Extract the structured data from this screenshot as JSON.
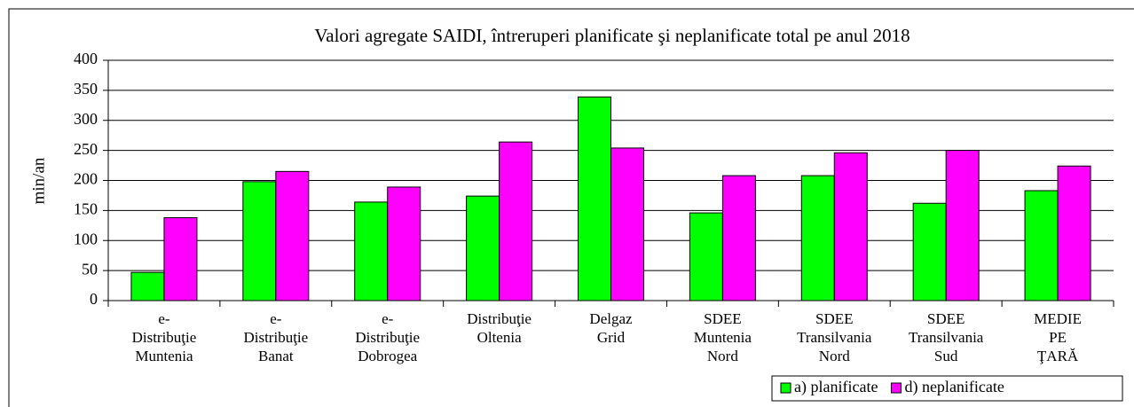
{
  "chart_data": {
    "type": "bar",
    "title": "Valori agregate SAIDI,  întreruperi planificate şi neplanificate total pe anul 2018",
    "y_label": "min/an",
    "categories": [
      [
        "e-",
        "Distribuţie",
        "Muntenia"
      ],
      [
        "e-",
        "Distribuţie",
        "Banat"
      ],
      [
        "e-",
        "Distribuţie",
        "Dobrogea"
      ],
      [
        "Distribuţie",
        "Oltenia"
      ],
      [
        "Delgaz",
        "Grid"
      ],
      [
        "SDEE",
        "Muntenia",
        "Nord"
      ],
      [
        "SDEE",
        "Transilvania",
        "Nord"
      ],
      [
        "SDEE",
        "Transilvania",
        "Sud"
      ],
      [
        "MEDIE",
        "PE",
        "ŢARĂ"
      ]
    ],
    "series": [
      {
        "name": "a) planificate",
        "color": "#00ff00",
        "values": [
          47,
          198,
          164,
          174,
          339,
          146,
          208,
          162,
          183
        ]
      },
      {
        "name": "d) neplanificate",
        "color": "#ff00ff",
        "values": [
          138,
          215,
          189,
          264,
          254,
          208,
          246,
          250,
          224
        ]
      }
    ],
    "ylim": [
      0,
      400
    ],
    "yticks": [
      0,
      50,
      100,
      150,
      200,
      250,
      300,
      350,
      400
    ],
    "legend": "bottom-right"
  }
}
